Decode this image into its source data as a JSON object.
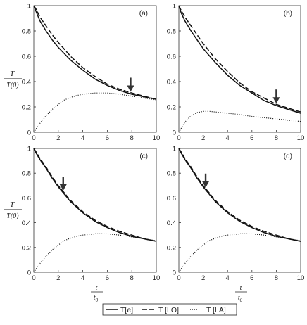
{
  "chart_data": {
    "type": "line",
    "shared": {
      "xlabel_num": "t",
      "xlabel_den": "t",
      "xlabel_den_sub": "0",
      "ylabel_num": "T",
      "ylabel_den": "T(0)",
      "x_ticks": [
        "0",
        "2",
        "4",
        "6",
        "8",
        "10"
      ],
      "y_ticks": [
        "0",
        "0.2",
        "0.4",
        "0.6",
        "0.8",
        "1"
      ],
      "xlim": [
        0,
        10
      ],
      "ylim": [
        0,
        1
      ],
      "legend": [
        "T[e]",
        "T [LO]",
        "T [LA]"
      ],
      "legend_placement": "bottom-center",
      "grid": false
    },
    "panels": [
      {
        "label": "(a)",
        "arrow_x": 7.9,
        "series": [
          {
            "name": "T[e]",
            "style": "solid",
            "x": [
              0,
              0.2,
              0.5,
              1,
              1.5,
              2,
              3,
              4,
              5,
              6,
              7,
              8,
              9,
              10
            ],
            "y": [
              1.0,
              0.95,
              0.88,
              0.8,
              0.73,
              0.67,
              0.57,
              0.49,
              0.42,
              0.37,
              0.33,
              0.3,
              0.28,
              0.26
            ]
          },
          {
            "name": "T [LO]",
            "style": "dashed",
            "x": [
              0,
              0.2,
              0.5,
              1,
              1.5,
              2,
              3,
              4,
              5,
              6,
              7,
              8,
              9,
              10
            ],
            "y": [
              1.0,
              0.97,
              0.91,
              0.84,
              0.77,
              0.71,
              0.6,
              0.51,
              0.44,
              0.38,
              0.34,
              0.31,
              0.285,
              0.26
            ]
          },
          {
            "name": "T [LA]",
            "style": "dotted",
            "x": [
              0,
              0.5,
              1,
              1.5,
              2,
              2.5,
              3,
              3.5,
              4,
              5,
              6,
              7,
              8,
              9,
              10
            ],
            "y": [
              0.0,
              0.07,
              0.13,
              0.18,
              0.22,
              0.255,
              0.275,
              0.29,
              0.3,
              0.31,
              0.31,
              0.3,
              0.285,
              0.27,
              0.255
            ]
          }
        ]
      },
      {
        "label": "(b)",
        "arrow_x": 8.0,
        "series": [
          {
            "name": "T[e]",
            "style": "solid",
            "x": [
              0,
              0.2,
              0.5,
              1,
              1.5,
              2,
              3,
              4,
              5,
              6,
              7,
              8,
              9,
              10
            ],
            "y": [
              1.0,
              0.94,
              0.88,
              0.8,
              0.73,
              0.66,
              0.55,
              0.45,
              0.37,
              0.31,
              0.25,
              0.21,
              0.18,
              0.15
            ]
          },
          {
            "name": "T [LO]",
            "style": "dashed",
            "x": [
              0,
              0.2,
              0.5,
              1,
              1.5,
              2,
              3,
              4,
              5,
              6,
              7,
              8,
              9,
              10
            ],
            "y": [
              1.0,
              0.96,
              0.91,
              0.84,
              0.77,
              0.7,
              0.58,
              0.48,
              0.39,
              0.32,
              0.27,
              0.22,
              0.19,
              0.16
            ]
          },
          {
            "name": "T [LA]",
            "style": "dotted",
            "x": [
              0,
              0.5,
              1,
              1.5,
              2,
              2.5,
              3,
              4,
              5,
              6,
              7,
              8,
              9,
              10
            ],
            "y": [
              0.0,
              0.08,
              0.13,
              0.155,
              0.165,
              0.165,
              0.16,
              0.15,
              0.14,
              0.125,
              0.115,
              0.105,
              0.095,
              0.085
            ]
          }
        ]
      },
      {
        "label": "(c)",
        "arrow_x": 2.4,
        "series": [
          {
            "name": "T[e]",
            "style": "solid",
            "x": [
              0,
              0.2,
              0.5,
              1,
              1.5,
              2,
              3,
              4,
              5,
              6,
              7,
              8,
              9,
              10
            ],
            "y": [
              1.0,
              0.96,
              0.91,
              0.84,
              0.76,
              0.69,
              0.57,
              0.48,
              0.41,
              0.36,
              0.32,
              0.29,
              0.27,
              0.25
            ]
          },
          {
            "name": "T [LO]",
            "style": "dashed",
            "x": [
              0,
              0.2,
              0.5,
              1,
              1.5,
              2,
              3,
              4,
              5,
              6,
              7,
              8,
              9,
              10
            ],
            "y": [
              1.0,
              0.97,
              0.92,
              0.85,
              0.77,
              0.7,
              0.58,
              0.49,
              0.42,
              0.37,
              0.33,
              0.3,
              0.27,
              0.25
            ]
          },
          {
            "name": "T [LA]",
            "style": "dotted",
            "x": [
              0,
              0.5,
              1,
              1.5,
              2,
              2.5,
              3,
              3.5,
              4,
              5,
              6,
              7,
              8,
              9,
              10
            ],
            "y": [
              0.0,
              0.07,
              0.13,
              0.18,
              0.22,
              0.255,
              0.275,
              0.29,
              0.3,
              0.31,
              0.31,
              0.3,
              0.285,
              0.27,
              0.255
            ]
          }
        ]
      },
      {
        "label": "(d)",
        "arrow_x": 2.2,
        "series": [
          {
            "name": "T[e]",
            "style": "solid",
            "x": [
              0,
              0.2,
              0.5,
              1,
              1.5,
              2,
              3,
              4,
              5,
              6,
              7,
              8,
              9,
              10
            ],
            "y": [
              1.0,
              0.96,
              0.91,
              0.84,
              0.76,
              0.69,
              0.57,
              0.48,
              0.41,
              0.36,
              0.32,
              0.29,
              0.27,
              0.25
            ]
          },
          {
            "name": "T [LO]",
            "style": "dashed",
            "x": [
              0,
              0.2,
              0.5,
              1,
              1.5,
              2,
              3,
              4,
              5,
              6,
              7,
              8,
              9,
              10
            ],
            "y": [
              1.0,
              0.97,
              0.92,
              0.85,
              0.77,
              0.7,
              0.58,
              0.49,
              0.42,
              0.37,
              0.33,
              0.3,
              0.27,
              0.25
            ]
          },
          {
            "name": "T [LA]",
            "style": "dotted",
            "x": [
              0,
              0.5,
              1,
              1.5,
              2,
              2.5,
              3,
              3.5,
              4,
              5,
              6,
              7,
              8,
              9,
              10
            ],
            "y": [
              0.0,
              0.07,
              0.13,
              0.18,
              0.22,
              0.255,
              0.275,
              0.29,
              0.3,
              0.31,
              0.31,
              0.3,
              0.285,
              0.27,
              0.255
            ]
          }
        ]
      }
    ]
  }
}
